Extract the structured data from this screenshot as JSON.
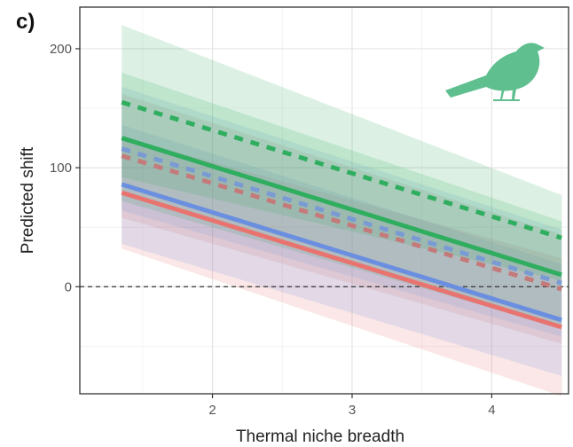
{
  "panel_label": "c)",
  "chart_data": {
    "type": "line",
    "xlabel": "Thermal niche breadth",
    "ylabel": "Predicted shift",
    "xlim": [
      1.05,
      4.55
    ],
    "ylim": [
      -90,
      235
    ],
    "xticks": [
      2,
      3,
      4
    ],
    "yticks": [
      0,
      100,
      200
    ],
    "grid": true,
    "legend": "none",
    "reference_line": {
      "y": 0,
      "style": "dashed",
      "color": "#333333"
    },
    "icon": "bird-silhouette-icon",
    "series": [
      {
        "color": "#e8736f",
        "dash": false,
        "x": [
          1.35,
          4.5
        ],
        "y": [
          79,
          -34
        ],
        "lower": [
          32,
          -92
        ],
        "upper": [
          126,
          24
        ]
      },
      {
        "color": "#6b8fe0",
        "dash": false,
        "x": [
          1.35,
          4.5
        ],
        "y": [
          86,
          -28
        ],
        "lower": [
          36,
          -75
        ],
        "upper": [
          136,
          19
        ]
      },
      {
        "color": "#c47a7a",
        "dash": true,
        "x": [
          1.35,
          4.5
        ],
        "y": [
          110,
          -2
        ],
        "lower": [
          58,
          -48
        ],
        "upper": [
          162,
          44
        ]
      },
      {
        "color": "#7a9ad4",
        "dash": true,
        "x": [
          1.35,
          4.5
        ],
        "y": [
          116,
          3
        ],
        "lower": [
          64,
          -42
        ],
        "upper": [
          168,
          48
        ]
      },
      {
        "color": "#2eae5e",
        "dash": false,
        "x": [
          1.35,
          4.5
        ],
        "y": [
          125,
          10
        ],
        "lower": [
          72,
          -35
        ],
        "upper": [
          180,
          55
        ]
      },
      {
        "color": "#2eae5e",
        "dash": true,
        "x": [
          1.35,
          4.5
        ],
        "y": [
          155,
          41
        ],
        "lower": [
          92,
          5
        ],
        "upper": [
          220,
          77
        ]
      }
    ]
  }
}
